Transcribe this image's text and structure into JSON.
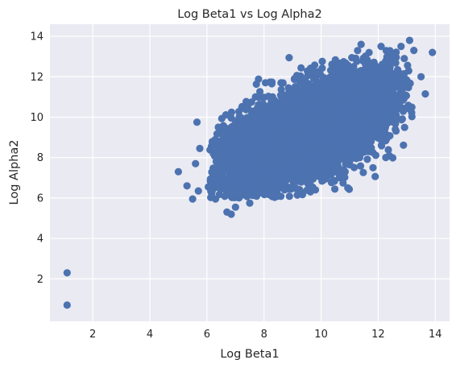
{
  "chart_data": {
    "type": "scatter",
    "title": "Log Beta1 vs Log Alpha2",
    "xlabel": "Log Beta1",
    "ylabel": "Log Alpha2",
    "xlim": [
      0.5,
      14.5
    ],
    "ylim": [
      -0.1,
      14.6
    ],
    "xticks": [
      2,
      4,
      6,
      8,
      10,
      12,
      14
    ],
    "yticks": [
      2,
      4,
      6,
      8,
      10,
      12,
      14
    ],
    "grid": true,
    "marker_color": "#4c72b0",
    "background_color": "#eaeaf2",
    "bulk": {
      "n_points": 7000,
      "x_mean": 9.5,
      "x_sd": 1.45,
      "y_mean": 9.3,
      "y_sd": 1.35,
      "correlation": 0.62
    },
    "points": [
      {
        "x": 1.1,
        "y": 2.3
      },
      {
        "x": 1.1,
        "y": 0.7
      },
      {
        "x": 5.0,
        "y": 7.3
      },
      {
        "x": 5.3,
        "y": 6.6
      },
      {
        "x": 5.5,
        "y": 5.95
      },
      {
        "x": 5.6,
        "y": 7.7
      },
      {
        "x": 5.65,
        "y": 9.75
      },
      {
        "x": 5.75,
        "y": 8.45
      },
      {
        "x": 5.7,
        "y": 6.35
      },
      {
        "x": 6.05,
        "y": 6.55
      },
      {
        "x": 6.3,
        "y": 5.95
      },
      {
        "x": 6.4,
        "y": 9.5
      },
      {
        "x": 6.7,
        "y": 5.3
      },
      {
        "x": 6.85,
        "y": 5.2
      },
      {
        "x": 7.0,
        "y": 5.55
      },
      {
        "x": 7.5,
        "y": 5.75
      },
      {
        "x": 7.7,
        "y": 11.0
      },
      {
        "x": 8.05,
        "y": 11.7
      },
      {
        "x": 8.3,
        "y": 11.0
      },
      {
        "x": 9.8,
        "y": 6.4
      },
      {
        "x": 10.6,
        "y": 7.55
      },
      {
        "x": 11.05,
        "y": 8.15
      },
      {
        "x": 11.4,
        "y": 8.2
      },
      {
        "x": 11.7,
        "y": 8.3
      },
      {
        "x": 11.75,
        "y": 8.8
      },
      {
        "x": 11.4,
        "y": 13.6
      },
      {
        "x": 12.1,
        "y": 13.5
      },
      {
        "x": 12.8,
        "y": 13.5
      },
      {
        "x": 13.1,
        "y": 13.8
      },
      {
        "x": 13.25,
        "y": 13.3
      },
      {
        "x": 13.5,
        "y": 12.0
      },
      {
        "x": 13.65,
        "y": 11.15
      },
      {
        "x": 13.9,
        "y": 13.2
      },
      {
        "x": 12.1,
        "y": 10.2
      },
      {
        "x": 12.6,
        "y": 9.9
      }
    ]
  }
}
